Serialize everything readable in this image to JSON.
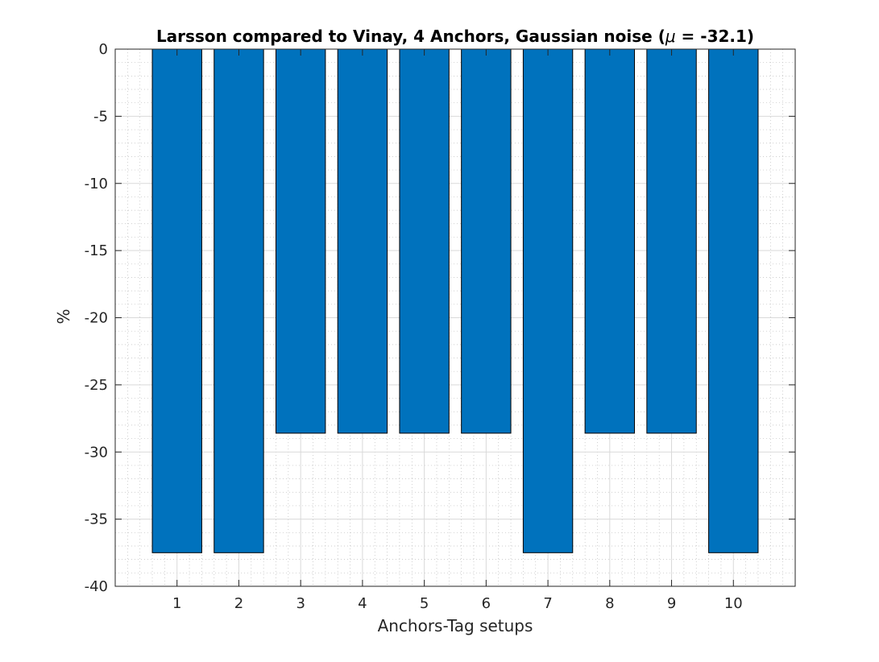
{
  "chart_data": {
    "type": "bar",
    "title_prefix": "Larsson compared to Vinay, 4 Anchors, Gaussian noise (",
    "title_mu": "μ",
    "title_suffix": " = -32.1)",
    "xlabel": "Anchors-Tag setups",
    "ylabel": "%",
    "categories": [
      "1",
      "2",
      "3",
      "4",
      "5",
      "6",
      "7",
      "8",
      "9",
      "10"
    ],
    "values": [
      -37.5,
      -37.5,
      -28.6,
      -28.6,
      -28.6,
      -28.6,
      -37.5,
      -28.6,
      -28.6,
      -37.5
    ],
    "xlim": [
      0,
      11
    ],
    "ylim": [
      -40,
      0
    ],
    "yticks": [
      0,
      -5,
      -10,
      -15,
      -20,
      -25,
      -30,
      -35,
      -40
    ],
    "ytick_labels": [
      "0",
      "-5",
      "-10",
      "-15",
      "-20",
      "-25",
      "-30",
      "-35",
      "-40"
    ],
    "grid": true,
    "minor_grid": true,
    "bar_color": "#0072bd",
    "bar_edge_color": "#000000"
  }
}
